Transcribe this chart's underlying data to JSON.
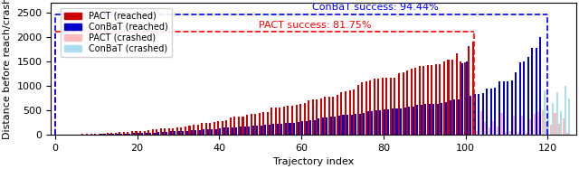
{
  "xlabel": "Trajectory index",
  "ylabel": "Distance before reach/crash",
  "ylim": [
    0,
    2700
  ],
  "xlim": [
    -1,
    127
  ],
  "pact_success_label": "PACT success: 81.75%",
  "conbat_success_label": "ConBaT success: 94.44%",
  "pact_hline_y": 2100,
  "conbat_hline_y": 2450,
  "pact_vline_x": 102,
  "conbat_vline_x": 120,
  "n_trajectories": 126,
  "pact_success_count": 103,
  "conbat_success_count": 119,
  "colors": {
    "pact_reached": "#cc0000",
    "conbat_reached": "#0000cc",
    "pact_crashed": "#ffbbbb",
    "conbat_crashed": "#aaddee"
  },
  "bar_width": 0.45,
  "legend_fontsize": 7,
  "tick_fontsize": 8,
  "label_fontsize": 8,
  "annotation_fontsize": 8
}
